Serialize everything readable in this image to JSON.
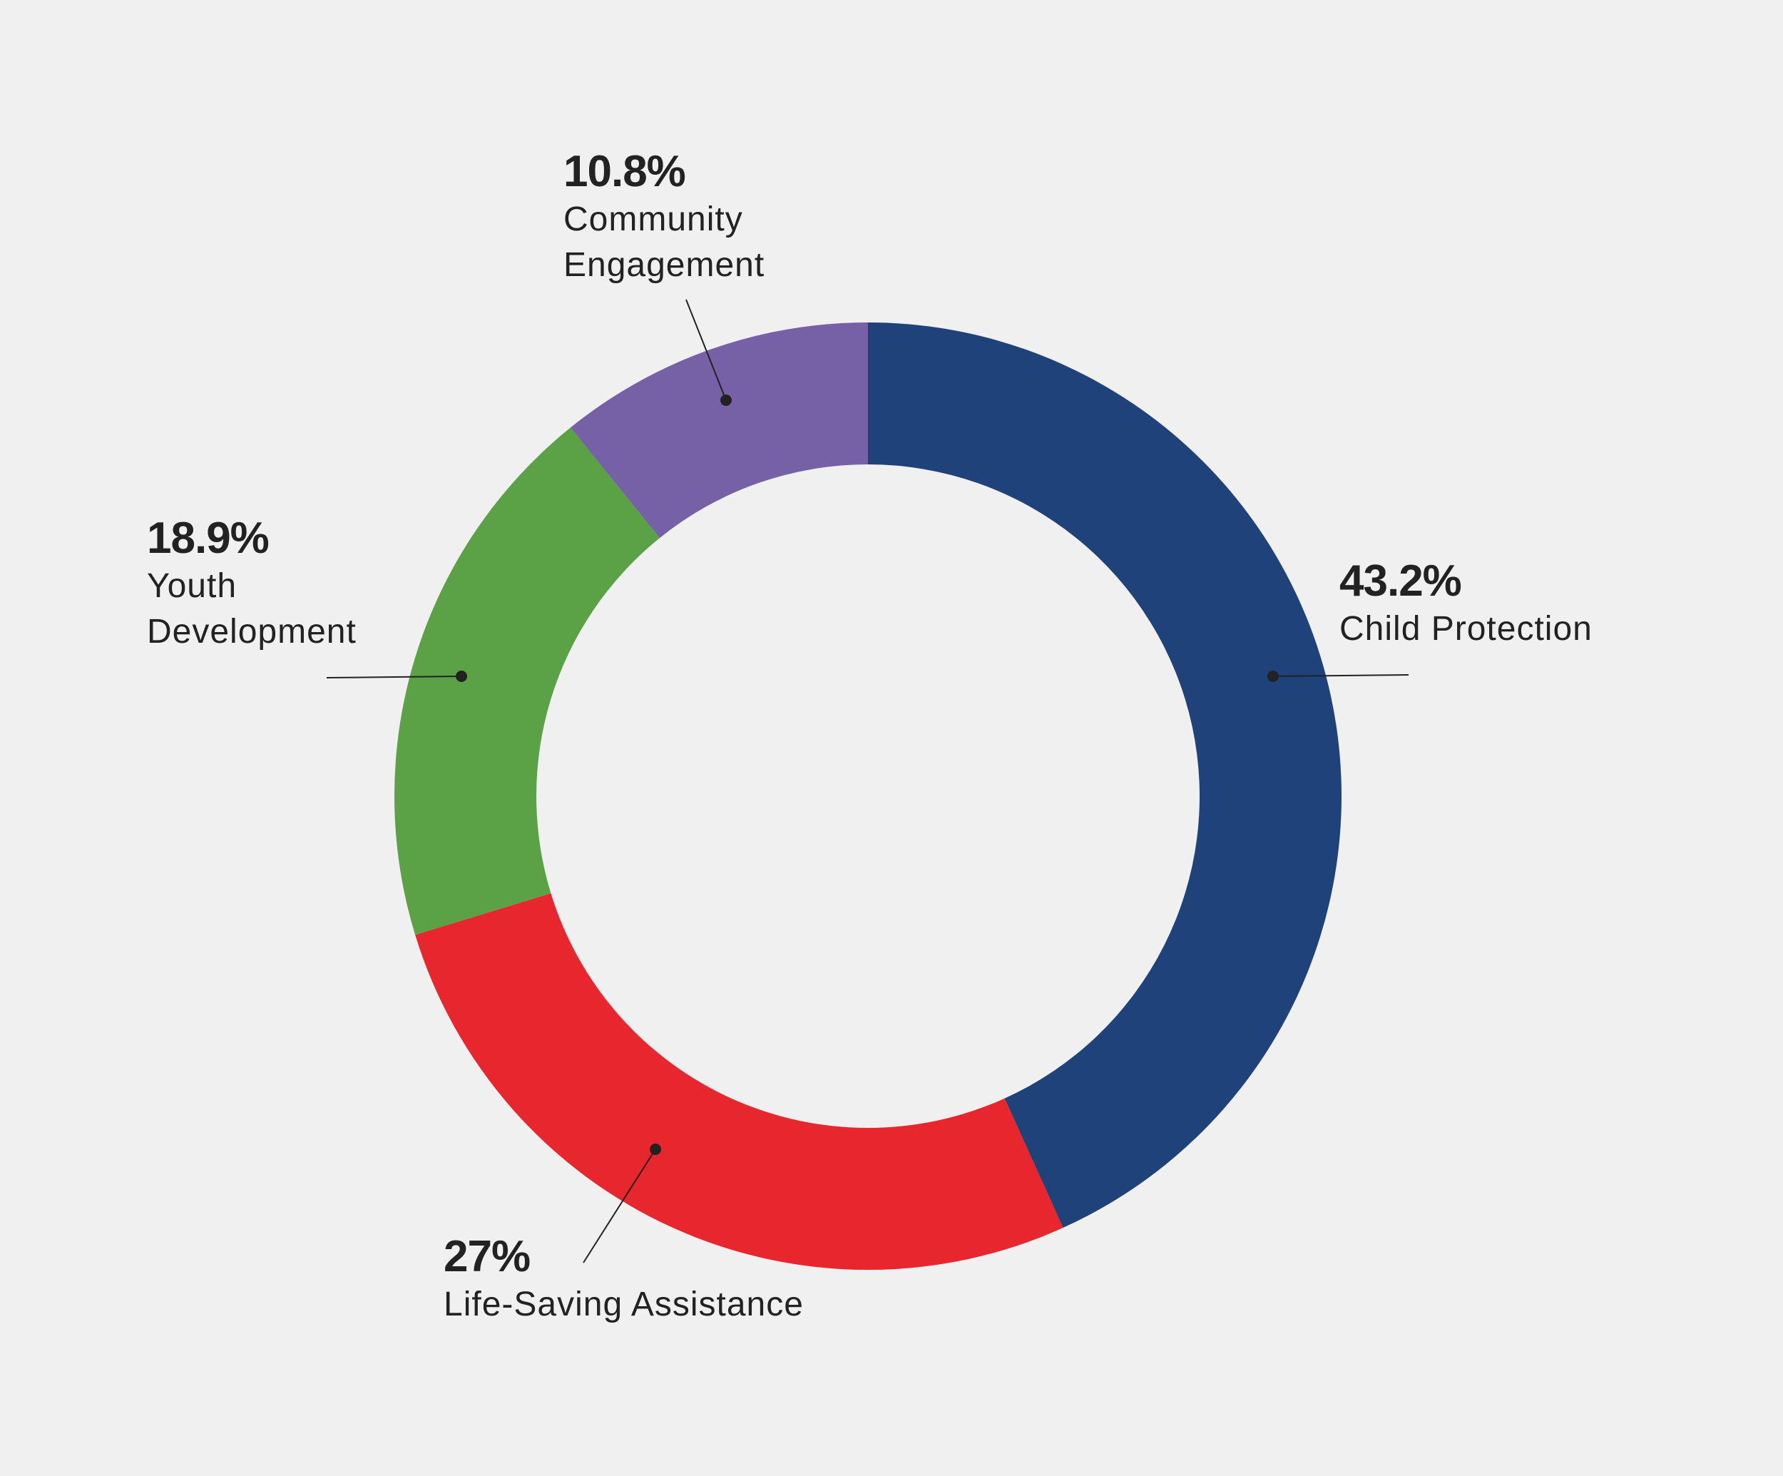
{
  "background": "#f0f0f0",
  "chart_data": {
    "type": "pie",
    "subtype": "donut",
    "title": "",
    "start_angle_deg": 0,
    "direction": "clockwise",
    "slices": [
      {
        "label": "Child Protection",
        "value": 43.2,
        "value_label": "43.2%",
        "color": "#1f427a",
        "name_lines": [
          "Child Protection"
        ]
      },
      {
        "label": "Life-Saving Assistance",
        "value": 27,
        "value_label": "27%",
        "color": "#e8262d",
        "name_lines": [
          "Life-Saving Assistance"
        ]
      },
      {
        "label": "Youth Development",
        "value": 18.9,
        "value_label": "18.9%",
        "color": "#5ba246",
        "name_lines": [
          "Youth",
          "Development"
        ]
      },
      {
        "label": "Community Engagement",
        "value": 10.8,
        "value_label": "10.8%",
        "color": "#7661a6",
        "name_lines": [
          "Community",
          "Engagement"
        ]
      }
    ]
  }
}
